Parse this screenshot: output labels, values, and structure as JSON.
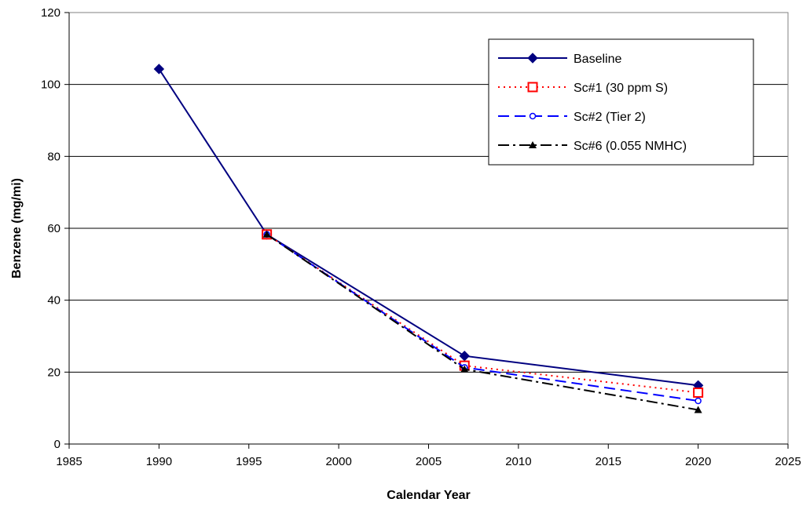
{
  "chart_data": {
    "type": "line",
    "title": "",
    "xlabel": "Calendar Year",
    "ylabel": "Benzene (mg/mi)",
    "xlim": [
      1985,
      2025
    ],
    "ylim": [
      0,
      120
    ],
    "xticks": [
      1985,
      1990,
      1995,
      2000,
      2005,
      2010,
      2015,
      2020,
      2025
    ],
    "yticks": [
      0,
      20,
      40,
      60,
      80,
      100,
      120
    ],
    "grid": "horizontal major gridlines",
    "legend_position": "top-right",
    "series": [
      {
        "name": "Baseline",
        "color": "#000080",
        "line": "solid",
        "marker": "diamond-filled",
        "x": [
          1990,
          1996,
          2007,
          2020
        ],
        "y": [
          104.3,
          58.3,
          24.5,
          16.3
        ]
      },
      {
        "name": "Sc#1 (30 ppm S)",
        "color": "#ff0000",
        "line": "dotted",
        "marker": "square-open",
        "x": [
          1996,
          2007,
          2020
        ],
        "y": [
          58.3,
          21.8,
          14.3
        ]
      },
      {
        "name": "Sc#2 (Tier 2)",
        "color": "#0000ff",
        "line": "dashed",
        "marker": "circle-open",
        "x": [
          1996,
          2007,
          2020
        ],
        "y": [
          58.3,
          21.3,
          12.0
        ]
      },
      {
        "name": "Sc#6 (0.055 NMHC)",
        "color": "#000000",
        "line": "dashdot",
        "marker": "triangle-filled",
        "x": [
          1996,
          2007,
          2020
        ],
        "y": [
          58.3,
          20.8,
          9.5
        ]
      }
    ]
  }
}
